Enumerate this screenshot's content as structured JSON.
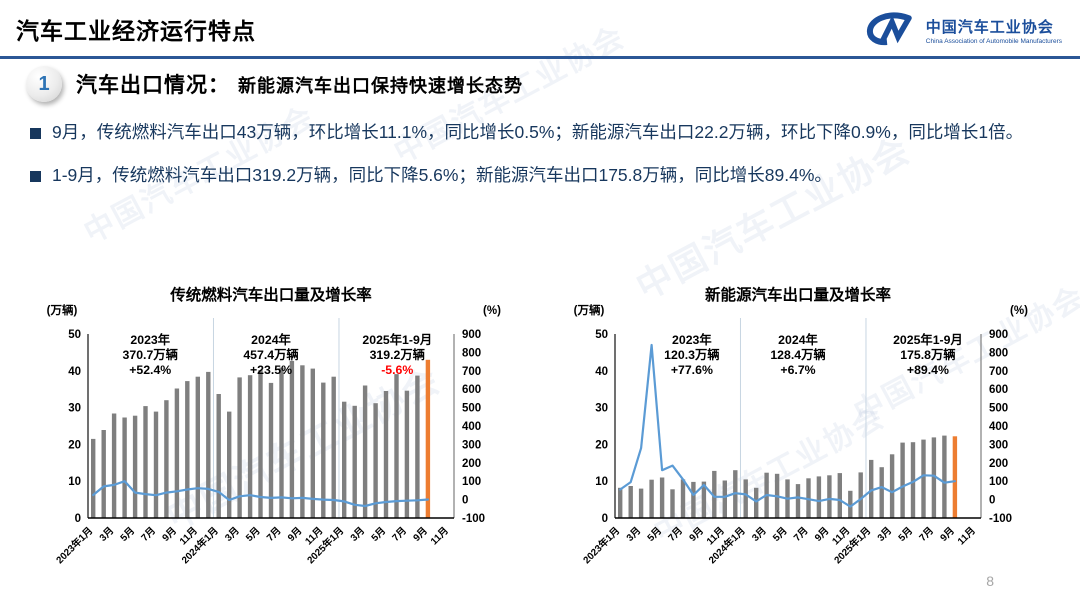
{
  "header": {
    "title": "汽车工业经济运行特点",
    "logo": {
      "cn": "中国汽车工业协会",
      "en": "China Association of Automobile Manufacturers"
    }
  },
  "section": {
    "badge": "1",
    "heading": "汽车出口情况：",
    "subheading": "新能源汽车出口保持快速增长态势"
  },
  "bullets": [
    "9月，传统燃料汽车出口43万辆，环比增长11.1%，同比增长0.5%；新能源汽车出口22.2万辆，环比下降0.9%，同比增长1倍。",
    "1-9月，传统燃料汽车出口319.2万辆，同比下降5.6%；新能源汽车出口175.8万辆，同比增长89.4%。"
  ],
  "watermark": {
    "text": "中国汽车工业协会"
  },
  "page": {
    "number": "8"
  },
  "colors": {
    "bar": "#7F7F7F",
    "bar_highlight": "#ED7D31",
    "line": "#5B9BD5",
    "year_divider": "#C7D5E2",
    "accent_blue": "#1B4E9B",
    "bullet_text": "#17375D",
    "negative_red": "#FF0000",
    "title_rule": "#2B5796"
  },
  "chart_data": [
    {
      "type": "bar",
      "subtype": "combo-bar-line",
      "title": "传统燃料汽车出口量及增长率",
      "left_axis": {
        "label": "(万辆)",
        "min": 0,
        "max": 50,
        "ticks": [
          0,
          10,
          20,
          30,
          40,
          50
        ]
      },
      "right_axis": {
        "label": "(%)",
        "min": -100,
        "max": 900,
        "ticks": [
          -100,
          0,
          100,
          200,
          300,
          400,
          500,
          600,
          700,
          800,
          900
        ]
      },
      "x_slots": 35,
      "x_tick_labels": [
        "2023年1月",
        "3月",
        "5月",
        "7月",
        "9月",
        "11月",
        "2024年1月",
        "3月",
        "5月",
        "7月",
        "9月",
        "11月",
        "2025年1月",
        "3月",
        "5月",
        "7月",
        "9月",
        "11月"
      ],
      "year_dividers": [
        12,
        24
      ],
      "highlight_last": true,
      "series": [
        {
          "name": "出口量",
          "type": "bar",
          "axis": "left",
          "values": [
            21.5,
            23.9,
            28.4,
            27.3,
            27.8,
            30.4,
            28.9,
            32.0,
            35.2,
            37.2,
            38.4,
            39.7,
            33.7,
            28.9,
            38.2,
            38.8,
            40.2,
            36.7,
            40.9,
            42.7,
            41.5,
            40.6,
            36.8,
            38.4,
            31.6,
            30.5,
            36.0,
            31.2,
            34.5,
            39.1,
            34.6,
            38.7,
            43.0
          ]
        },
        {
          "name": "增长率",
          "type": "line",
          "axis": "right",
          "values": [
            25,
            72,
            80,
            100,
            38,
            30,
            24,
            38,
            45,
            55,
            62,
            58,
            42,
            -2,
            18,
            24,
            14,
            9,
            12,
            7,
            9,
            4,
            0,
            -2,
            -10,
            -28,
            -35,
            -20,
            -13,
            -8,
            -6,
            -4,
            0.5
          ]
        }
      ],
      "annotations": [
        {
          "title": "2023年",
          "volume": "370.7万辆",
          "growth": "+52.4%",
          "x_frac": 0.17,
          "growth_color": "#000000"
        },
        {
          "title": "2024年",
          "volume": "457.4万辆",
          "growth": "+23.5%",
          "x_frac": 0.5,
          "growth_color": "#000000"
        },
        {
          "title": "2025年1-9月",
          "volume": "319.2万辆",
          "growth": "-5.6%",
          "x_frac": 0.845,
          "growth_color": "#FF0000"
        }
      ]
    },
    {
      "type": "bar",
      "subtype": "combo-bar-line",
      "title": "新能源汽车出口量及增长率",
      "left_axis": {
        "label": "(万辆)",
        "min": 0,
        "max": 50,
        "ticks": [
          0,
          10,
          20,
          30,
          40,
          50
        ]
      },
      "right_axis": {
        "label": "(%)",
        "min": -100,
        "max": 900,
        "ticks": [
          -100,
          0,
          100,
          200,
          300,
          400,
          500,
          600,
          700,
          800,
          900
        ]
      },
      "x_slots": 35,
      "x_tick_labels": [
        "2023年1月",
        "3月",
        "5月",
        "7月",
        "9月",
        "11月",
        "2024年1月",
        "3月",
        "5月",
        "7月",
        "9月",
        "11月",
        "2025年1月",
        "3月",
        "5月",
        "7月",
        "9月",
        "11月"
      ],
      "year_dividers": [
        12,
        24
      ],
      "highlight_last": true,
      "series": [
        {
          "name": "出口量",
          "type": "bar",
          "axis": "left",
          "values": [
            8.2,
            8.7,
            8.0,
            10.4,
            11.0,
            7.8,
            10.5,
            9.8,
            9.9,
            12.8,
            10.2,
            13.0,
            10.5,
            8.2,
            12.3,
            12.0,
            10.5,
            9.2,
            10.8,
            11.3,
            11.6,
            12.2,
            7.4,
            12.4,
            15.8,
            13.8,
            17.3,
            20.5,
            20.6,
            21.3,
            21.9,
            22.4,
            22.2
          ]
        },
        {
          "name": "增长率",
          "type": "line",
          "axis": "right",
          "values": [
            55,
            95,
            280,
            840,
            160,
            185,
            110,
            25,
            80,
            15,
            15,
            35,
            28,
            -10,
            25,
            18,
            5,
            12,
            2,
            -8,
            4,
            -2,
            -38,
            3,
            50,
            68,
            40,
            71,
            96,
            132,
            130,
            92,
            100
          ]
        }
      ],
      "annotations": [
        {
          "title": "2023年",
          "volume": "120.3万辆",
          "growth": "+77.6%",
          "x_frac": 0.21,
          "growth_color": "#000000"
        },
        {
          "title": "2024年",
          "volume": "128.4万辆",
          "growth": "+6.7%",
          "x_frac": 0.5,
          "growth_color": "#000000"
        },
        {
          "title": "2025年1-9月",
          "volume": "175.8万辆",
          "growth": "+89.4%",
          "x_frac": 0.855,
          "growth_color": "#000000"
        }
      ]
    }
  ]
}
